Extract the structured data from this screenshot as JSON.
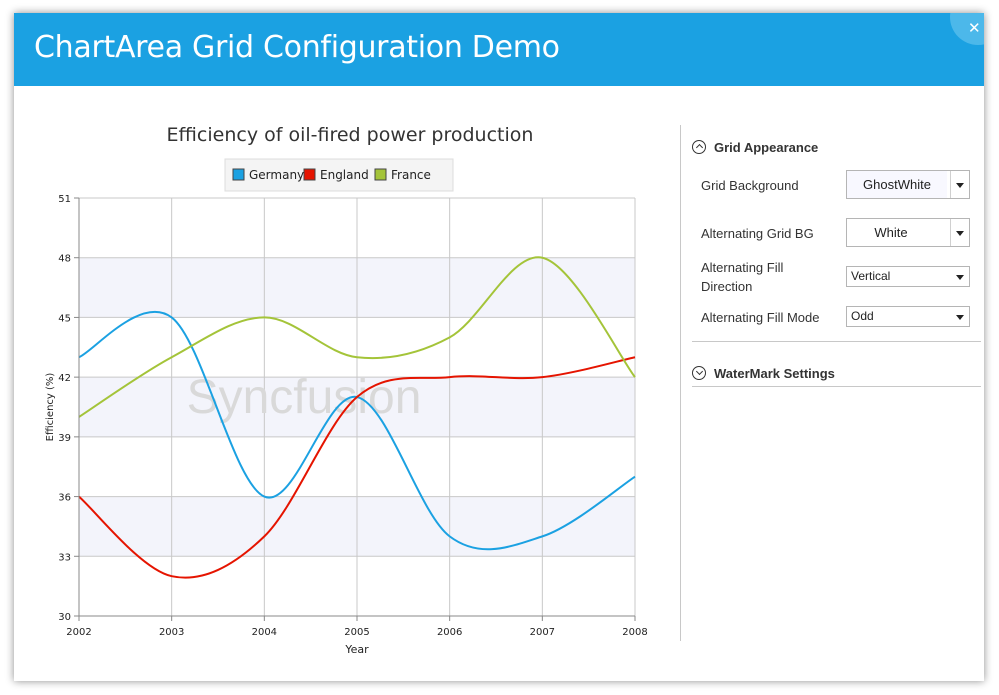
{
  "window": {
    "title": "ChartArea Grid Configuration Demo"
  },
  "chart_data": {
    "type": "line",
    "title": "Efficiency of oil-fired power production",
    "xlabel": "Year",
    "ylabel": "Efficiency (%)",
    "x": [
      2002,
      2003,
      2004,
      2005,
      2006,
      2007,
      2008
    ],
    "xlim": [
      2002,
      2008
    ],
    "ylim": [
      30,
      51
    ],
    "yticks": [
      30,
      33,
      36,
      39,
      42,
      45,
      48,
      51
    ],
    "grid": true,
    "legend_position": "top",
    "watermark": "Syncfusion",
    "series": [
      {
        "name": "Germany",
        "color": "#1ba1e2",
        "values": [
          43,
          45,
          36,
          41,
          34,
          34,
          37
        ]
      },
      {
        "name": "England",
        "color": "#e51400",
        "values": [
          36,
          32,
          34,
          41,
          42,
          42,
          43
        ]
      },
      {
        "name": "France",
        "color": "#a4c439",
        "values": [
          40,
          43,
          45,
          43,
          44,
          48,
          42
        ]
      }
    ],
    "alternating_band_color": "#f3f4fb"
  },
  "panel": {
    "grid_appearance": {
      "title": "Grid Appearance",
      "grid_background": {
        "label": "Grid Background",
        "value": "GhostWhite",
        "swatch": "#f8f8ff"
      },
      "alternating_grid_bg": {
        "label": "Alternating Grid BG",
        "value": "White",
        "swatch": "#ffffff"
      },
      "alternating_fill_direction": {
        "label_line1": "Alternating Fill",
        "label_line2": "Direction",
        "value": "Vertical"
      },
      "alternating_fill_mode": {
        "label": "Alternating Fill Mode",
        "value": "Odd"
      }
    },
    "watermark_settings": {
      "title": "WaterMark Settings"
    }
  }
}
